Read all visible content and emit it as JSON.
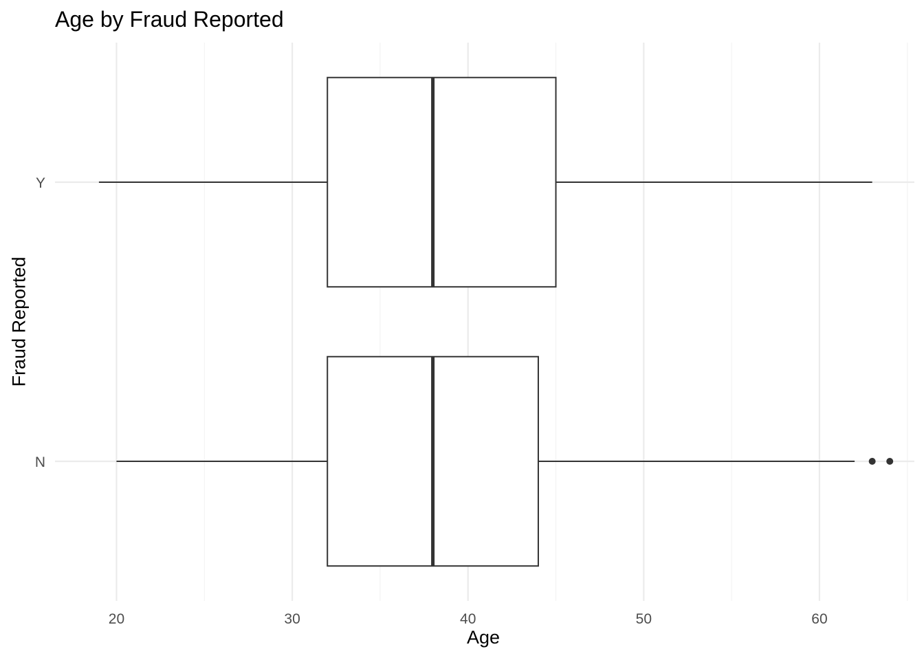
{
  "chart_data": {
    "type": "boxplot",
    "orientation": "horizontal",
    "title": "Age by Fraud Reported",
    "xlabel": "Age",
    "ylabel": "Fraud Reported",
    "xlim": [
      16.5,
      65.4
    ],
    "x_ticks": [
      20,
      30,
      40,
      50,
      60
    ],
    "categories": [
      "N",
      "Y"
    ],
    "grid": true,
    "legend": "none",
    "boxes": [
      {
        "category": "N",
        "whisker_low": 20,
        "q1": 32,
        "median": 38,
        "q3": 44,
        "whisker_high": 62,
        "outliers": [
          63,
          64
        ]
      },
      {
        "category": "Y",
        "whisker_low": 19,
        "q1": 32,
        "median": 38,
        "q3": 45,
        "whisker_high": 63,
        "outliers": []
      }
    ]
  },
  "colors": {
    "grid_major": "#ebebeb",
    "grid_minor": "#f2f2f2",
    "box_line": "#333333",
    "tick_text": "#4d4d4d",
    "background": "#ffffff"
  }
}
